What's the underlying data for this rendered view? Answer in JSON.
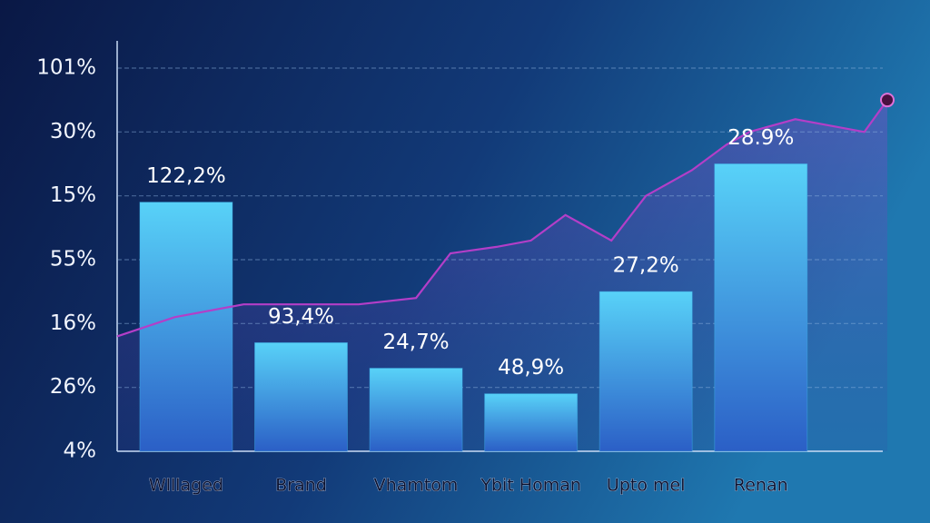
{
  "chart_data": {
    "type": "bar",
    "categories": [
      "Wlllaged",
      "Brand",
      "Vhamtom",
      "Ybit Homan",
      "Upto mel",
      "Renan"
    ],
    "values": [
      3.9,
      1.7,
      1.3,
      0.9,
      2.5,
      4.5
    ],
    "annotations": [
      "122,2%",
      "93,4%",
      "24,7%",
      "48,9%",
      "27,2%",
      "28.9%"
    ],
    "color": "#3fb6ee",
    "xlim": [
      -0.6,
      6.1
    ],
    "ylim": [
      0,
      6
    ],
    "yticks": [
      {
        "value": 0,
        "label": "4%"
      },
      {
        "value": 1,
        "label": "26%"
      },
      {
        "value": 2,
        "label": "16%"
      },
      {
        "value": 3,
        "label": "55%"
      },
      {
        "value": 4,
        "label": "15%"
      },
      {
        "value": 5,
        "label": "30%"
      },
      {
        "value": 6,
        "label": "101%"
      }
    ],
    "grid": true,
    "line": {
      "color": "#b43ec8",
      "x": [
        -0.6,
        -0.1,
        0.5,
        1.0,
        1.5,
        2.0,
        2.3,
        2.7,
        3.0,
        3.3,
        3.7,
        4.0,
        4.4,
        4.7,
        4.9,
        5.3,
        5.6,
        5.9,
        6.1
      ],
      "values": [
        1.8,
        2.1,
        2.3,
        2.3,
        2.3,
        2.4,
        3.1,
        3.2,
        3.3,
        3.7,
        3.3,
        4.0,
        4.4,
        4.8,
        5.0,
        5.2,
        5.1,
        5.0,
        5.5
      ]
    }
  }
}
